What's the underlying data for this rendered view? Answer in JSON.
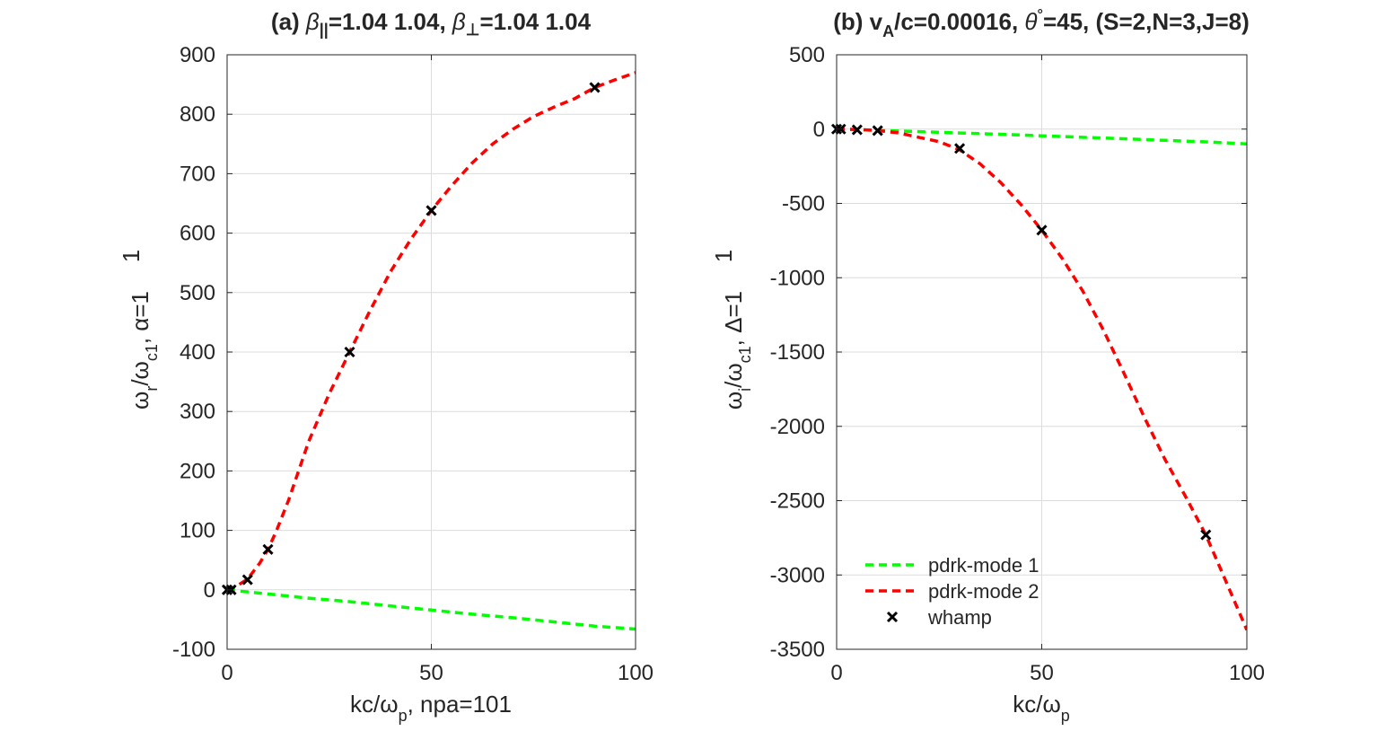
{
  "chart_data": [
    {
      "type": "line",
      "title": {
        "prefix": "(a) ",
        "beta_par": "β",
        "beta_par_sub": "||",
        "part2": "=1.04       1.04, ",
        "beta_perp": "β",
        "beta_perp_sub": "⊥",
        "part3": "=1.04       1.04"
      },
      "xlabel": {
        "main": "kc/ω",
        "sub": "p",
        "tail": ", npa=101"
      },
      "ylabel": {
        "main": "ω",
        "sub1": "r",
        "mid": "/ω",
        "sub2": "c1",
        "tail": ", α=1"
      },
      "ylabel_extra": "1",
      "xlim": [
        0,
        100
      ],
      "ylim": [
        -100,
        900
      ],
      "xticks": [
        "0",
        "50",
        "100"
      ],
      "yticks": [
        "-100",
        "0",
        "100",
        "200",
        "300",
        "400",
        "500",
        "600",
        "700",
        "800",
        "900"
      ],
      "grid": true,
      "series": [
        {
          "name": "pdrk-mode 1",
          "color": "#00ff00",
          "style": "dashed",
          "x": [
            0,
            10,
            20,
            30,
            40,
            50,
            60,
            70,
            80,
            90,
            100
          ],
          "y": [
            0,
            -7,
            -14,
            -20,
            -27,
            -34,
            -41,
            -47,
            -54,
            -61,
            -66
          ]
        },
        {
          "name": "pdrk-mode 2",
          "color": "#ff0000",
          "style": "dashed",
          "x": [
            0,
            2,
            5,
            8,
            10,
            12,
            15,
            18,
            20,
            25,
            30,
            35,
            40,
            45,
            50,
            55,
            60,
            65,
            70,
            75,
            80,
            85,
            90,
            95,
            100
          ],
          "y": [
            0,
            5,
            18,
            45,
            68,
            98,
            150,
            210,
            250,
            330,
            400,
            470,
            535,
            590,
            638,
            680,
            718,
            750,
            775,
            796,
            812,
            826,
            845,
            858,
            870
          ]
        },
        {
          "name": "whamp",
          "color": "#000000",
          "style": "marker-x",
          "x": [
            0,
            1,
            5,
            10,
            30,
            50,
            90
          ],
          "y": [
            0,
            0,
            17,
            68,
            400,
            638,
            845
          ]
        }
      ]
    },
    {
      "type": "line",
      "title": {
        "prefix": "(b) v",
        "sub": "A",
        "part2": "/c=0.00016, ",
        "theta": "θ",
        "theta_sup": "°",
        "part3": "=45, (S=2,N=3,J=8)"
      },
      "xlabel": {
        "main": "kc/ω",
        "sub": "p"
      },
      "ylabel": {
        "main": "ω",
        "sub1": "i",
        "mid": "/ω",
        "sub2": "c1",
        "tail": ", Δ=1"
      },
      "ylabel_extra": "1",
      "xlim": [
        0,
        100
      ],
      "ylim": [
        -3500,
        500
      ],
      "xticks": [
        "0",
        "50",
        "100"
      ],
      "yticks": [
        "-3500",
        "-3000",
        "-2500",
        "-2000",
        "-1500",
        "-1000",
        "-500",
        "0",
        "500"
      ],
      "grid": true,
      "legend": {
        "position": "bottom-left",
        "entries": [
          "pdrk-mode 1",
          "pdrk-mode 2",
          "whamp"
        ]
      },
      "series": [
        {
          "name": "pdrk-mode 1",
          "color": "#00ff00",
          "style": "dashed",
          "x": [
            0,
            10,
            20,
            30,
            40,
            50,
            60,
            70,
            80,
            90,
            100
          ],
          "y": [
            0,
            -8,
            -17,
            -26,
            -35,
            -45,
            -55,
            -65,
            -76,
            -86,
            -100
          ]
        },
        {
          "name": "pdrk-mode 2",
          "color": "#ff0000",
          "style": "dashed",
          "x": [
            0,
            5,
            10,
            15,
            20,
            25,
            30,
            35,
            40,
            45,
            50,
            55,
            60,
            65,
            70,
            75,
            80,
            85,
            90,
            95,
            100
          ],
          "y": [
            0,
            -2,
            -10,
            -25,
            -55,
            -85,
            -140,
            -235,
            -360,
            -510,
            -680,
            -870,
            -1090,
            -1350,
            -1640,
            -1940,
            -2220,
            -2470,
            -2730,
            -3050,
            -3370
          ]
        },
        {
          "name": "whamp",
          "color": "#000000",
          "style": "marker-x",
          "x": [
            0,
            1,
            5,
            10,
            30,
            50,
            90
          ],
          "y": [
            0,
            0,
            -5,
            -10,
            -130,
            -680,
            -2730
          ]
        }
      ]
    }
  ]
}
